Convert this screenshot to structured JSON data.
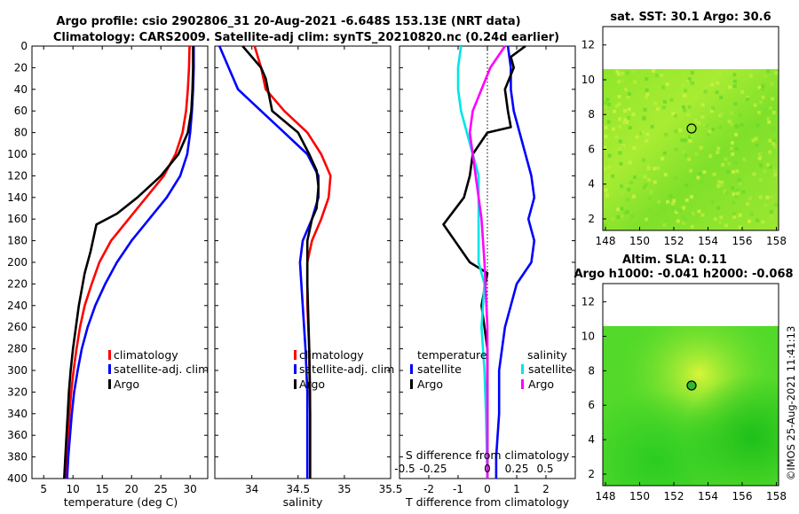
{
  "header": {
    "title_line1": "Argo profile: csio 2902806_31 20-Aug-2021 -6.648S 153.13E (NRT data)",
    "title_line2": "Climatology: CARS2009. Satellite-adj clim: synTS_20210820.nc (0.24d earlier)"
  },
  "side_text": "©IMOS 25-Aug-2021 11:41:13",
  "colors": {
    "climatology": "#ff0000",
    "satellite": "#0000ff",
    "argo": "#000000",
    "s_satellite": "#00e5e5",
    "s_argo": "#ff00ff"
  },
  "chart_data": [
    {
      "id": "temperature",
      "type": "line",
      "xlabel": "temperature (deg C)",
      "xlim": [
        3,
        33
      ],
      "xticks": [
        5,
        10,
        15,
        20,
        25,
        30
      ],
      "ylim": [
        0,
        400
      ],
      "yticks": [
        0,
        20,
        40,
        60,
        80,
        100,
        120,
        140,
        160,
        180,
        200,
        220,
        240,
        260,
        280,
        300,
        320,
        340,
        360,
        380,
        400
      ],
      "legend": [
        "climatology",
        "satellite-adj. clim",
        "Argo"
      ],
      "series": [
        {
          "name": "climatology",
          "color": "#ff0000",
          "points": [
            [
              29.9,
              0
            ],
            [
              29.8,
              20
            ],
            [
              29.6,
              40
            ],
            [
              29.3,
              60
            ],
            [
              28.7,
              80
            ],
            [
              27.5,
              100
            ],
            [
              25.5,
              120
            ],
            [
              22.5,
              140
            ],
            [
              19.5,
              160
            ],
            [
              16.5,
              180
            ],
            [
              14.5,
              200
            ],
            [
              13.2,
              220
            ],
            [
              12,
              240
            ],
            [
              11.2,
              260
            ],
            [
              10.6,
              280
            ],
            [
              10.1,
              300
            ],
            [
              9.7,
              320
            ],
            [
              9.4,
              340
            ],
            [
              9.2,
              360
            ],
            [
              9,
              380
            ],
            [
              8.8,
              400
            ]
          ]
        },
        {
          "name": "satellite-adj. clim",
          "color": "#0000ff",
          "points": [
            [
              30.6,
              0
            ],
            [
              30.6,
              20
            ],
            [
              30.5,
              40
            ],
            [
              30.3,
              60
            ],
            [
              30,
              80
            ],
            [
              29.5,
              100
            ],
            [
              28.3,
              120
            ],
            [
              26,
              140
            ],
            [
              23,
              160
            ],
            [
              20,
              180
            ],
            [
              17.5,
              200
            ],
            [
              15.5,
              220
            ],
            [
              13.8,
              240
            ],
            [
              12.5,
              260
            ],
            [
              11.5,
              280
            ],
            [
              10.8,
              300
            ],
            [
              10.2,
              320
            ],
            [
              9.8,
              340
            ],
            [
              9.5,
              360
            ],
            [
              9.2,
              380
            ],
            [
              9,
              400
            ]
          ]
        },
        {
          "name": "Argo",
          "color": "#000000",
          "points": [
            [
              30.5,
              0
            ],
            [
              30.5,
              20
            ],
            [
              30.4,
              40
            ],
            [
              30.2,
              60
            ],
            [
              29.6,
              80
            ],
            [
              28,
              100
            ],
            [
              25,
              120
            ],
            [
              21,
              140
            ],
            [
              17.5,
              155
            ],
            [
              14,
              165
            ],
            [
              13,
              190
            ],
            [
              12,
              210
            ],
            [
              11,
              240
            ],
            [
              10.5,
              260
            ],
            [
              10,
              280
            ],
            [
              9.6,
              300
            ],
            [
              9.3,
              320
            ],
            [
              9.1,
              340
            ],
            [
              8.9,
              360
            ],
            [
              8.7,
              380
            ],
            [
              8.5,
              400
            ]
          ]
        }
      ]
    },
    {
      "id": "salinity",
      "type": "line",
      "xlabel": "salinity",
      "xlim": [
        33.6,
        35.5
      ],
      "xticks": [
        34,
        34.5,
        35,
        35.5
      ],
      "ylim": [
        0,
        400
      ],
      "legend": [
        "climatology",
        "satellite-adj. clim",
        "Argo"
      ],
      "series": [
        {
          "name": "climatology",
          "color": "#ff0000",
          "points": [
            [
              34.03,
              0
            ],
            [
              34.1,
              20
            ],
            [
              34.15,
              40
            ],
            [
              34.35,
              60
            ],
            [
              34.6,
              80
            ],
            [
              34.75,
              100
            ],
            [
              34.85,
              120
            ],
            [
              34.83,
              140
            ],
            [
              34.75,
              160
            ],
            [
              34.65,
              180
            ],
            [
              34.6,
              200
            ],
            [
              34.6,
              240
            ],
            [
              34.62,
              280
            ],
            [
              34.63,
              320
            ],
            [
              34.63,
              400
            ]
          ]
        },
        {
          "name": "satellite-adj. clim",
          "color": "#0000ff",
          "points": [
            [
              33.65,
              0
            ],
            [
              33.75,
              20
            ],
            [
              33.85,
              40
            ],
            [
              34.1,
              60
            ],
            [
              34.35,
              80
            ],
            [
              34.6,
              100
            ],
            [
              34.72,
              120
            ],
            [
              34.72,
              140
            ],
            [
              34.65,
              160
            ],
            [
              34.55,
              180
            ],
            [
              34.52,
              200
            ],
            [
              34.55,
              240
            ],
            [
              34.58,
              280
            ],
            [
              34.6,
              320
            ],
            [
              34.6,
              400
            ]
          ]
        },
        {
          "name": "Argo",
          "color": "#000000",
          "points": [
            [
              33.9,
              0
            ],
            [
              34,
              10
            ],
            [
              34.1,
              20
            ],
            [
              34.15,
              30
            ],
            [
              34.22,
              60
            ],
            [
              34.5,
              80
            ],
            [
              34.62,
              100
            ],
            [
              34.7,
              115
            ],
            [
              34.72,
              130
            ],
            [
              34.7,
              150
            ],
            [
              34.65,
              160
            ],
            [
              34.6,
              180
            ],
            [
              34.6,
              220
            ],
            [
              34.62,
              280
            ],
            [
              34.63,
              340
            ],
            [
              34.63,
              400
            ]
          ]
        }
      ]
    },
    {
      "id": "difference",
      "type": "line",
      "xlabel": "T difference from climatology",
      "xlabel_top": "S difference from climatology",
      "xlim": [
        -3,
        3
      ],
      "xticks": [
        -2,
        -1,
        0,
        1,
        2
      ],
      "s_xticks": [
        "-0.5",
        "-0.25",
        "0",
        "0.25",
        "0.5"
      ],
      "ylim": [
        0,
        400
      ],
      "legend_t_title": "temperature",
      "legend_s_title": "salinity",
      "legend": [
        "satellite",
        "Argo"
      ],
      "series": [
        {
          "name": "T satellite",
          "color": "#0000ff",
          "points": [
            [
              0.7,
              0
            ],
            [
              0.8,
              20
            ],
            [
              0.8,
              40
            ],
            [
              0.9,
              60
            ],
            [
              1.1,
              80
            ],
            [
              1.3,
              100
            ],
            [
              1.5,
              120
            ],
            [
              1.6,
              140
            ],
            [
              1.4,
              160
            ],
            [
              1.6,
              180
            ],
            [
              1.5,
              200
            ],
            [
              1.0,
              220
            ],
            [
              0.8,
              240
            ],
            [
              0.6,
              260
            ],
            [
              0.5,
              280
            ],
            [
              0.4,
              300
            ],
            [
              0.4,
              340
            ],
            [
              0.3,
              380
            ],
            [
              0.3,
              400
            ]
          ]
        },
        {
          "name": "T Argo",
          "color": "#000000",
          "points": [
            [
              1.3,
              0
            ],
            [
              0.8,
              10
            ],
            [
              0.9,
              20
            ],
            [
              0.6,
              40
            ],
            [
              0.7,
              60
            ],
            [
              0.8,
              75
            ],
            [
              0,
              80
            ],
            [
              -0.5,
              100
            ],
            [
              -0.6,
              120
            ],
            [
              -0.8,
              140
            ],
            [
              -1.5,
              165
            ],
            [
              -0.6,
              200
            ],
            [
              0,
              210
            ],
            [
              -0.2,
              240
            ],
            [
              0,
              280
            ],
            [
              0,
              320
            ],
            [
              0,
              360
            ],
            [
              0,
              400
            ]
          ]
        },
        {
          "name": "S satellite",
          "color": "#00e5e5",
          "points": [
            [
              -0.9,
              0
            ],
            [
              -1,
              20
            ],
            [
              -1,
              40
            ],
            [
              -0.9,
              60
            ],
            [
              -0.7,
              80
            ],
            [
              -0.5,
              100
            ],
            [
              -0.3,
              120
            ],
            [
              -0.3,
              160
            ],
            [
              -0.3,
              200
            ],
            [
              -0.1,
              220
            ],
            [
              -0.2,
              260
            ],
            [
              -0.1,
              300
            ],
            [
              -0.05,
              340
            ],
            [
              0,
              400
            ]
          ]
        },
        {
          "name": "S Argo",
          "color": "#ff00ff",
          "points": [
            [
              0.6,
              0
            ],
            [
              0.1,
              20
            ],
            [
              -0.2,
              40
            ],
            [
              -0.5,
              60
            ],
            [
              -0.6,
              80
            ],
            [
              -0.5,
              100
            ],
            [
              -0.4,
              120
            ],
            [
              -0.2,
              160
            ],
            [
              -0.1,
              200
            ],
            [
              0,
              260
            ],
            [
              0,
              400
            ]
          ]
        }
      ]
    },
    {
      "id": "sst_map",
      "type": "heatmap",
      "title": "sat. SST: 30.1 Argo: 30.6",
      "xticks": [
        "148",
        "150",
        "152",
        "154",
        "156",
        "158"
      ],
      "yticks": [
        "2",
        "4",
        "6",
        "8",
        "10",
        "12"
      ],
      "marker_lon": 153.13,
      "marker_lat": 6.648
    },
    {
      "id": "sla_map",
      "type": "heatmap",
      "title_line1": "Altim. SLA: 0.11",
      "title_line2": "Argo h1000: -0.041 h2000: -0.068",
      "xticks": [
        "148",
        "150",
        "152",
        "154",
        "156",
        "158"
      ],
      "yticks": [
        "2",
        "4",
        "6",
        "8",
        "10",
        "12"
      ],
      "marker_lon": 153.13,
      "marker_lat": 6.648
    }
  ]
}
